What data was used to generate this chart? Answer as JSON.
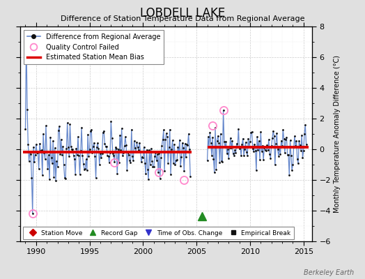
{
  "title": "LOBDELL LAKE",
  "subtitle": "Difference of Station Temperature Data from Regional Average",
  "ylabel_right": "Monthly Temperature Anomaly Difference (°C)",
  "xlim": [
    1988.5,
    2015.8
  ],
  "ylim": [
    -6,
    8
  ],
  "yticks": [
    -6,
    -4,
    -2,
    0,
    2,
    4,
    6,
    8
  ],
  "xticks": [
    1990,
    1995,
    2000,
    2005,
    2010,
    2015
  ],
  "bg_color": "#e0e0e0",
  "plot_bg_color": "#ffffff",
  "line_color": "#6688cc",
  "bias_color": "#dd0000",
  "watermark": "Berkeley Earth",
  "segment1_bias": -0.2,
  "segment2_bias": 0.12,
  "segment1_start": 1988.8,
  "segment1_end": 2004.5,
  "segment2_start": 2006.0,
  "segment2_end": 2015.5,
  "gap_marker_x": 2005.5,
  "gap_marker_y": -4.35,
  "qc_fail_points": [
    [
      1989.67,
      -4.2
    ],
    [
      1997.3,
      -0.85
    ],
    [
      2001.5,
      -1.5
    ],
    [
      2003.8,
      -2.0
    ],
    [
      2006.5,
      1.55
    ],
    [
      2007.5,
      2.55
    ]
  ],
  "spike_x": 1989.25,
  "spike_y": 7.4,
  "title_fontsize": 12,
  "subtitle_fontsize": 8,
  "tick_labelsize": 8,
  "ylabel_fontsize": 7
}
